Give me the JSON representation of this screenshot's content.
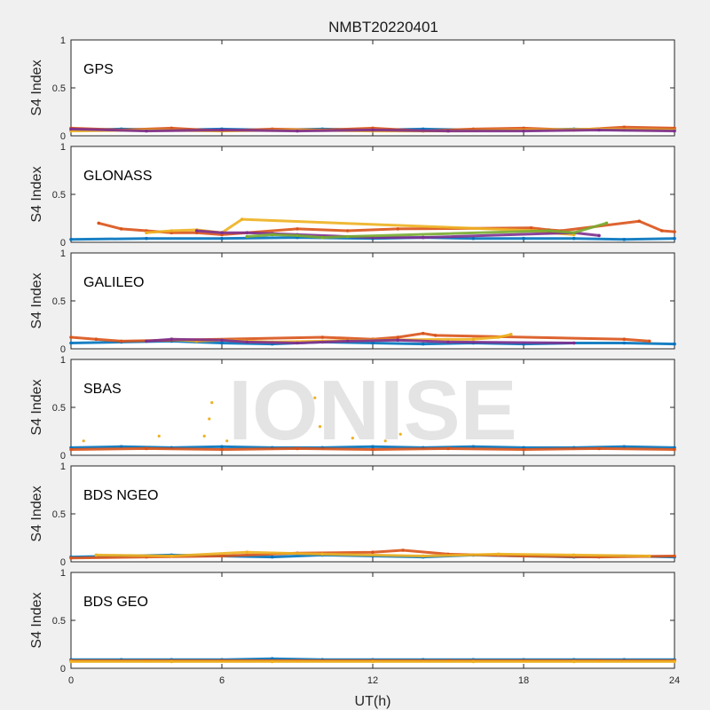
{
  "chart_data": {
    "type": "scatter",
    "title": "NMBT20220401",
    "xlabel": "UT(h)",
    "ylabel": "S4 Index",
    "xlim": [
      0,
      24
    ],
    "ylim": [
      0,
      1
    ],
    "xticks": [
      "0",
      "6",
      "12",
      "18",
      "24"
    ],
    "yticks": [
      "0",
      "0.5",
      "1"
    ],
    "watermark": "IONISE",
    "colors": [
      "#0072BD",
      "#D95319",
      "#EDB120",
      "#7E2F8E",
      "#77AC30",
      "#4DBEEE",
      "#A2142F"
    ],
    "panels": [
      {
        "label": "GPS",
        "series": [
          {
            "x": [
              0,
              2,
              4,
              6,
              8,
              10,
              12,
              14,
              16,
              18,
              20,
              22,
              24
            ],
            "y": [
              0.06,
              0.07,
              0.06,
              0.07,
              0.06,
              0.07,
              0.06,
              0.07,
              0.06,
              0.06,
              0.07,
              0.06,
              0.07
            ]
          },
          {
            "x": [
              0,
              2,
              4,
              6,
              8,
              10,
              12,
              14,
              16,
              18,
              20,
              22,
              24
            ],
            "y": [
              0.08,
              0.06,
              0.08,
              0.05,
              0.07,
              0.06,
              0.08,
              0.05,
              0.07,
              0.08,
              0.06,
              0.09,
              0.08
            ]
          },
          {
            "x": [
              0,
              3,
              6,
              9,
              12,
              15,
              18,
              21,
              24
            ],
            "y": [
              0.05,
              0.06,
              0.05,
              0.06,
              0.05,
              0.05,
              0.06,
              0.07,
              0.06
            ]
          },
          {
            "x": [
              0,
              3,
              6,
              9,
              12,
              15,
              18,
              21,
              24
            ],
            "y": [
              0.07,
              0.05,
              0.06,
              0.05,
              0.06,
              0.05,
              0.05,
              0.06,
              0.05
            ]
          }
        ]
      },
      {
        "label": "GLONASS",
        "series": [
          {
            "x": [
              0,
              3,
              6,
              9,
              12,
              14,
              16,
              18,
              20,
              22,
              24
            ],
            "y": [
              0.03,
              0.04,
              0.04,
              0.05,
              0.04,
              0.05,
              0.04,
              0.04,
              0.04,
              0.03,
              0.04
            ]
          },
          {
            "x": [
              1.1,
              2,
              3,
              4,
              5,
              6,
              9,
              11,
              13,
              18.3,
              19,
              19.5,
              22.6,
              23.5,
              24
            ],
            "y": [
              0.2,
              0.14,
              0.12,
              0.1,
              0.1,
              0.08,
              0.14,
              0.12,
              0.14,
              0.15,
              0.13,
              0.12,
              0.22,
              0.12,
              0.11
            ]
          },
          {
            "x": [
              3,
              4,
              5,
              6,
              6.8,
              18.5,
              19,
              20
            ],
            "y": [
              0.1,
              0.12,
              0.13,
              0.1,
              0.24,
              0.12,
              0.1,
              0.08
            ]
          },
          {
            "x": [
              5,
              6,
              7,
              8,
              9,
              12,
              14,
              20,
              21
            ],
            "y": [
              0.12,
              0.1,
              0.1,
              0.09,
              0.08,
              0.05,
              0.05,
              0.1,
              0.07
            ]
          },
          {
            "x": [
              7,
              8,
              9,
              10,
              11,
              19,
              20,
              21.3
            ],
            "y": [
              0.06,
              0.08,
              0.07,
              0.05,
              0.06,
              0.12,
              0.1,
              0.2
            ]
          }
        ]
      },
      {
        "label": "GALILEO",
        "series": [
          {
            "x": [
              0,
              2,
              4,
              6,
              8,
              10,
              12,
              14,
              16,
              18,
              20,
              22,
              24
            ],
            "y": [
              0.06,
              0.07,
              0.08,
              0.06,
              0.05,
              0.07,
              0.06,
              0.05,
              0.06,
              0.05,
              0.06,
              0.06,
              0.05
            ]
          },
          {
            "x": [
              0,
              1,
              2,
              10,
              12,
              13,
              14,
              14.5,
              22,
              23
            ],
            "y": [
              0.12,
              0.1,
              0.08,
              0.12,
              0.1,
              0.12,
              0.16,
              0.14,
              0.1,
              0.08
            ]
          },
          {
            "x": [
              4,
              5,
              6,
              8,
              10,
              12,
              16,
              17,
              17.5
            ],
            "y": [
              0.1,
              0.08,
              0.09,
              0.07,
              0.08,
              0.09,
              0.1,
              0.12,
              0.15
            ]
          },
          {
            "x": [
              3,
              4,
              6,
              7,
              9,
              11,
              13,
              15,
              20
            ],
            "y": [
              0.08,
              0.1,
              0.09,
              0.07,
              0.06,
              0.08,
              0.09,
              0.07,
              0.06
            ]
          }
        ]
      },
      {
        "label": "SBAS",
        "series": [
          {
            "x": [
              0,
              2,
              4,
              6,
              8,
              10,
              12,
              14,
              16,
              18,
              20,
              22,
              24
            ],
            "y": [
              0.08,
              0.09,
              0.08,
              0.09,
              0.08,
              0.08,
              0.09,
              0.08,
              0.09,
              0.08,
              0.08,
              0.09,
              0.08
            ]
          },
          {
            "x": [
              0,
              3,
              6,
              9,
              12,
              15,
              18,
              21,
              24
            ],
            "y": [
              0.06,
              0.07,
              0.06,
              0.07,
              0.06,
              0.07,
              0.06,
              0.07,
              0.06
            ]
          },
          {
            "x": [
              0.5,
              3.5,
              5.3,
              5.5,
              5.6,
              6.2,
              9.7,
              9.9,
              11.2,
              12.5,
              13.1
            ],
            "y": [
              0.15,
              0.2,
              0.2,
              0.38,
              0.55,
              0.15,
              0.6,
              0.3,
              0.18,
              0.15,
              0.22
            ]
          }
        ]
      },
      {
        "label": "BDS NGEO",
        "series": [
          {
            "x": [
              0,
              2,
              4,
              6,
              8,
              10,
              12,
              14,
              16,
              18,
              20,
              22,
              24
            ],
            "y": [
              0.05,
              0.06,
              0.07,
              0.06,
              0.05,
              0.07,
              0.06,
              0.05,
              0.07,
              0.06,
              0.05,
              0.06,
              0.05
            ]
          },
          {
            "x": [
              0,
              3,
              6,
              9,
              12,
              13.2,
              15,
              18,
              21,
              24
            ],
            "y": [
              0.04,
              0.05,
              0.06,
              0.09,
              0.1,
              0.12,
              0.08,
              0.06,
              0.05,
              0.06
            ]
          },
          {
            "x": [
              1,
              4,
              7,
              10,
              14,
              17,
              20,
              23
            ],
            "y": [
              0.07,
              0.06,
              0.1,
              0.08,
              0.06,
              0.08,
              0.07,
              0.06
            ]
          }
        ]
      },
      {
        "label": "BDS GEO",
        "series": [
          {
            "x": [
              0,
              2,
              4,
              6,
              8,
              10,
              12,
              14,
              16,
              18,
              20,
              22,
              24
            ],
            "y": [
              0.09,
              0.09,
              0.09,
              0.09,
              0.1,
              0.09,
              0.09,
              0.09,
              0.09,
              0.09,
              0.09,
              0.09,
              0.09
            ]
          },
          {
            "x": [
              0,
              3,
              6,
              9,
              12,
              15,
              18,
              21,
              24
            ],
            "y": [
              0.08,
              0.08,
              0.08,
              0.08,
              0.08,
              0.08,
              0.08,
              0.08,
              0.08
            ]
          },
          {
            "x": [
              0,
              4,
              8,
              12,
              16,
              20,
              24
            ],
            "y": [
              0.07,
              0.07,
              0.07,
              0.07,
              0.07,
              0.07,
              0.07
            ]
          }
        ]
      }
    ]
  }
}
